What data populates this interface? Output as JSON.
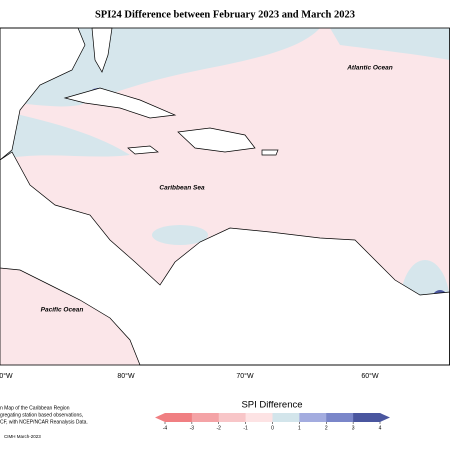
{
  "title": "SPI24 Difference between February 2023 and March 2023",
  "map": {
    "labels": [
      "Atlantic Ocean",
      "Caribbean Sea",
      "Pacific Ocean"
    ],
    "longitudes": [
      "0°W",
      "80°W",
      "70°W",
      "60°W"
    ]
  },
  "legend": {
    "title": "SPI Difference",
    "ticks": [
      -4,
      -3,
      -2,
      -1,
      0,
      1,
      2,
      3,
      4
    ],
    "colors": [
      "#f07f82",
      "#f4a3a6",
      "#f8c6c8",
      "#fde3e4",
      "#d3e5eb",
      "#a3acdf",
      "#7a86c9",
      "#4a569f"
    ]
  },
  "footer": {
    "lines": [
      "n Map of the Caribbean Region",
      "gregating station based observations,",
      "CF, with NCEP/NCAR Reanalysis Data."
    ],
    "credit": "CIMH March-2023"
  }
}
